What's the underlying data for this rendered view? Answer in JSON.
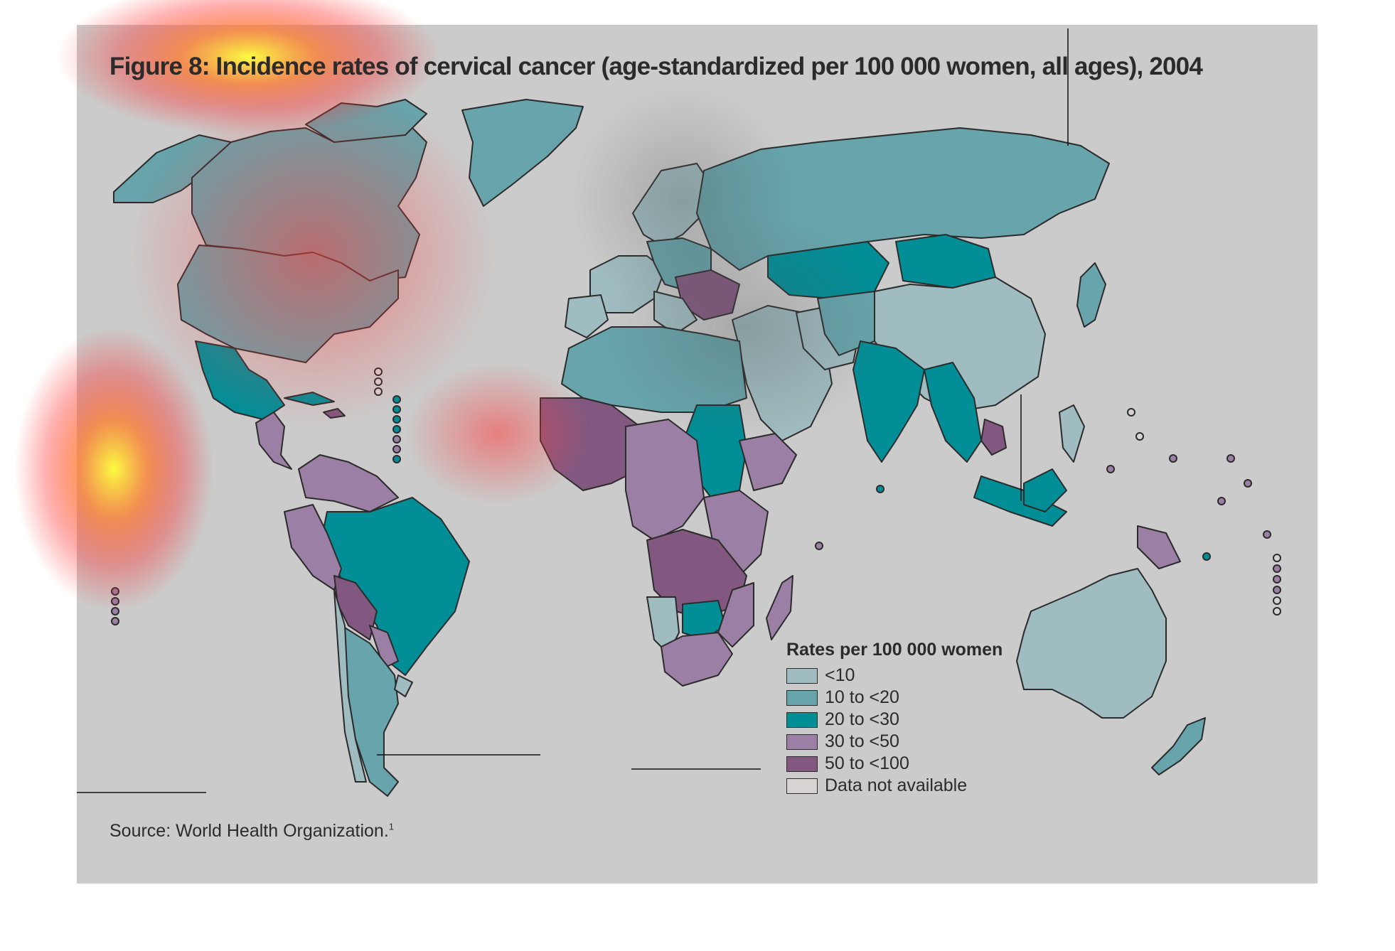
{
  "figure": {
    "title": "Figure 8: Incidence rates of cervical cancer (age-standardized per 100 000 women, all ages), 2004",
    "source_label": "Source: World Health Organization.",
    "source_note": "1"
  },
  "legend": {
    "title": "Rates per 100 000 women",
    "items": [
      {
        "label": "<10",
        "color": "#9fbcc0"
      },
      {
        "label": "10 to <20",
        "color": "#67a4ab"
      },
      {
        "label": "20 to <30",
        "color": "#028e97"
      },
      {
        "label": "30 to <50",
        "color": "#9c7fa4"
      },
      {
        "label": "50 to <100",
        "color": "#825880"
      },
      {
        "label": "Data not available",
        "color": "#d8d3d3"
      }
    ]
  },
  "colors": {
    "background": "#cbcbcb",
    "border": "#2b2b2b",
    "lt10": "#9fbcc0",
    "r10_20": "#67a4ab",
    "r20_30": "#028e97",
    "r30_50": "#9c7fa4",
    "r50_100": "#825880",
    "na": "#d8d3d3"
  }
}
